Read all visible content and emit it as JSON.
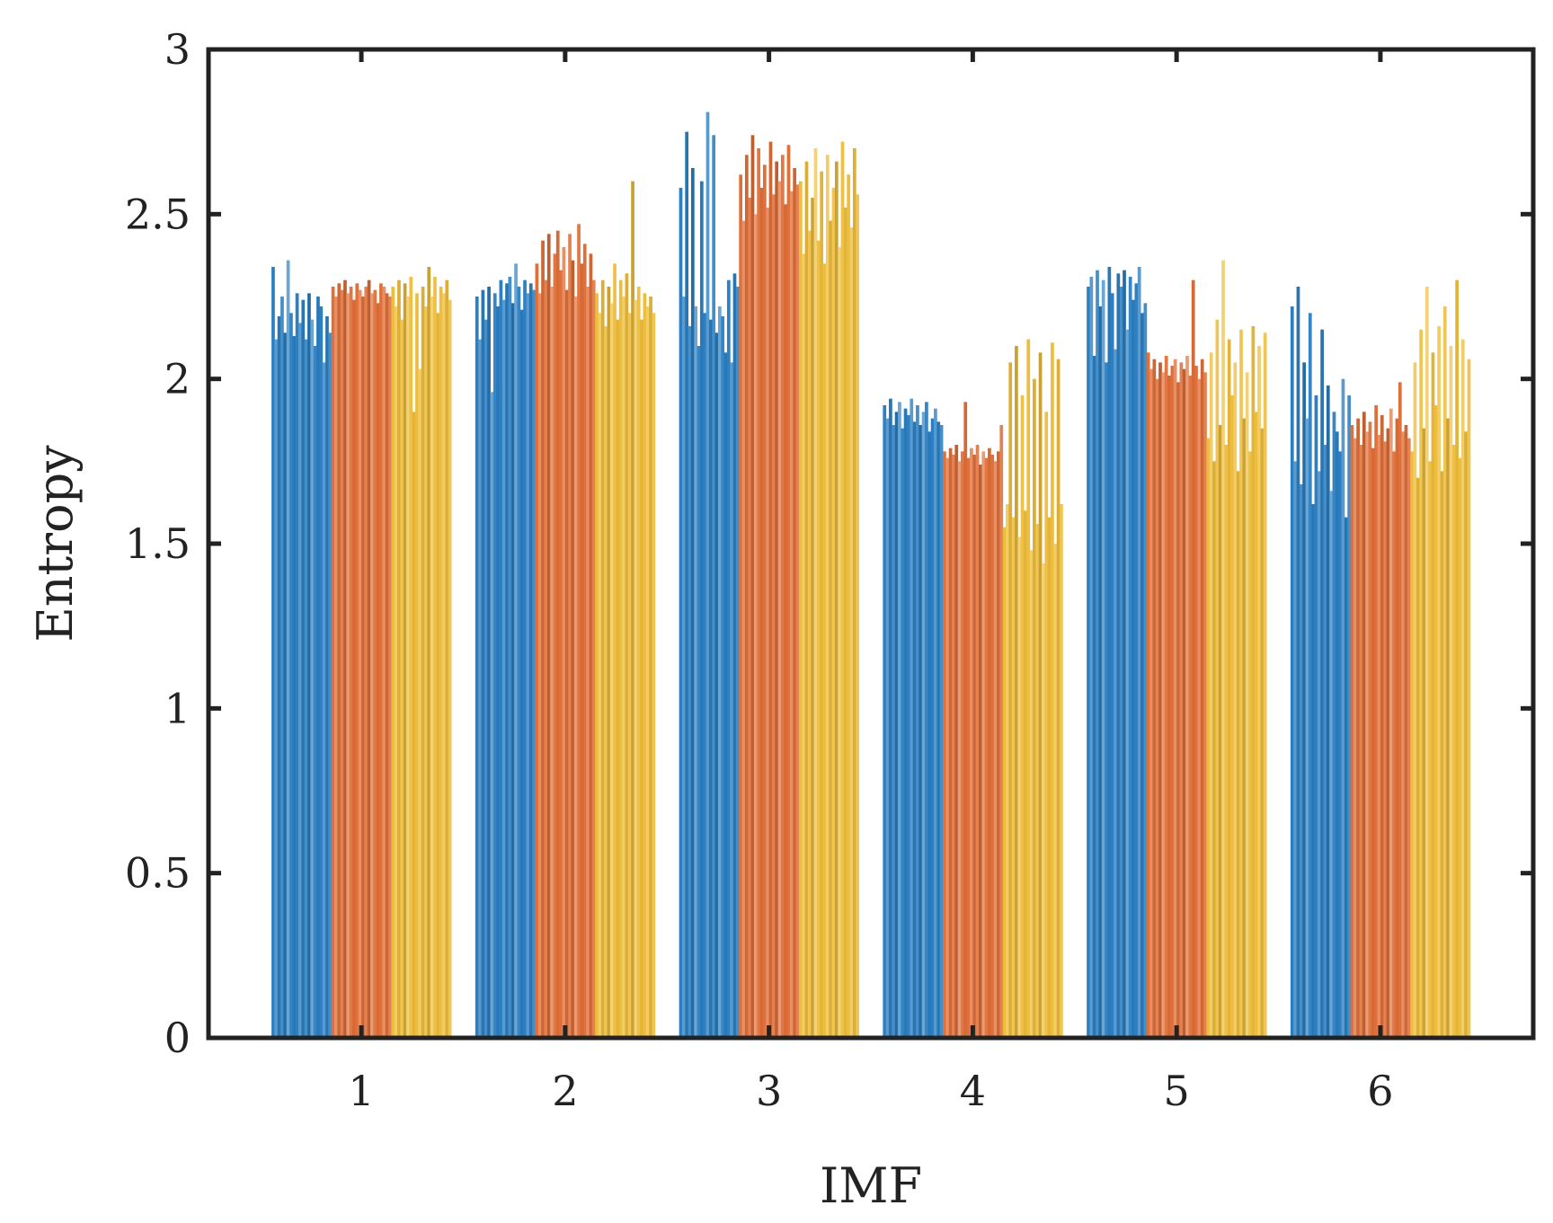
{
  "chart_data": {
    "type": "bar",
    "title": "",
    "xlabel": "IMF",
    "ylabel": "Entropy",
    "categories": [
      "1",
      "2",
      "3",
      "4",
      "5",
      "6"
    ],
    "ylim": [
      0,
      3
    ],
    "yticks": [
      0,
      0.5,
      1,
      1.5,
      2,
      2.5,
      3
    ],
    "ytick_labels": [
      "0",
      "0.5",
      "1",
      "1.5",
      "2",
      "2.5",
      "3"
    ],
    "grid": false,
    "legend": null,
    "bars_per_series_per_group": 20,
    "series": [
      {
        "name": "series 1",
        "color": "#2b7fc2",
        "groups": [
          [
            2.34,
            2.12,
            2.19,
            2.25,
            2.14,
            2.36,
            2.2,
            2.13,
            2.26,
            2.17,
            2.24,
            2.12,
            2.26,
            2.18,
            2.1,
            2.25,
            2.22,
            2.05,
            2.19,
            2.14
          ],
          [
            2.25,
            2.12,
            2.27,
            2.18,
            2.28,
            1.96,
            2.26,
            2.22,
            2.3,
            2.24,
            2.29,
            2.31,
            2.23,
            2.35,
            2.28,
            2.21,
            2.3,
            2.26,
            2.29,
            2.27
          ],
          [
            2.58,
            2.25,
            2.75,
            2.16,
            2.64,
            2.22,
            2.1,
            2.6,
            2.2,
            2.81,
            2.18,
            2.74,
            2.14,
            2.22,
            2.19,
            2.08,
            2.3,
            2.05,
            2.32,
            2.28
          ],
          [
            1.92,
            1.88,
            1.94,
            1.86,
            1.9,
            1.93,
            1.85,
            1.91,
            1.89,
            1.94,
            1.87,
            1.92,
            1.86,
            1.9,
            1.93,
            1.84,
            1.88,
            1.91,
            1.87,
            1.86
          ],
          [
            2.28,
            2.31,
            2.07,
            2.33,
            2.22,
            2.3,
            2.05,
            2.34,
            2.26,
            2.09,
            2.32,
            2.28,
            2.33,
            2.15,
            2.31,
            2.24,
            2.29,
            2.34,
            2.2,
            2.23
          ],
          [
            2.22,
            1.75,
            2.28,
            1.68,
            2.05,
            1.88,
            2.2,
            1.62,
            1.95,
            1.72,
            2.15,
            1.8,
            1.98,
            1.66,
            1.9,
            1.84,
            1.78,
            2.0,
            1.58,
            1.95
          ]
        ]
      },
      {
        "name": "series 2",
        "color": "#e0703a",
        "groups": [
          [
            2.28,
            2.25,
            2.29,
            2.27,
            2.3,
            2.26,
            2.28,
            2.24,
            2.29,
            2.27,
            2.25,
            2.28,
            2.3,
            2.26,
            2.27,
            2.23,
            2.29,
            2.28,
            2.26,
            2.25
          ],
          [
            2.35,
            2.26,
            2.42,
            2.3,
            2.44,
            2.28,
            2.38,
            2.45,
            2.33,
            2.4,
            2.27,
            2.44,
            2.36,
            2.25,
            2.47,
            2.35,
            2.41,
            2.28,
            2.38,
            2.3
          ],
          [
            2.62,
            2.48,
            2.68,
            2.55,
            2.74,
            2.5,
            2.7,
            2.58,
            2.65,
            2.52,
            2.72,
            2.56,
            2.66,
            2.6,
            2.68,
            2.53,
            2.71,
            2.57,
            2.64,
            2.59
          ],
          [
            1.78,
            1.76,
            1.79,
            1.77,
            1.8,
            1.75,
            1.78,
            1.93,
            1.76,
            1.79,
            1.77,
            1.8,
            1.74,
            1.78,
            1.76,
            1.79,
            1.77,
            1.75,
            1.78,
            1.86
          ],
          [
            2.08,
            2.03,
            2.06,
            2.0,
            2.05,
            2.02,
            2.07,
            2.01,
            2.04,
            2.06,
            1.99,
            2.05,
            2.03,
            2.07,
            2.01,
            2.3,
            2.04,
            2.0,
            2.06,
            2.02
          ],
          [
            1.86,
            1.82,
            1.88,
            1.8,
            1.9,
            1.84,
            1.87,
            1.79,
            1.92,
            1.83,
            1.89,
            1.81,
            1.85,
            1.91,
            1.78,
            1.88,
            1.99,
            1.84,
            1.86,
            1.82
          ]
        ]
      },
      {
        "name": "series 3",
        "color": "#eebd3c",
        "groups": [
          [
            2.28,
            2.22,
            2.3,
            2.18,
            2.29,
            2.25,
            2.31,
            1.9,
            2.26,
            2.03,
            2.28,
            2.22,
            2.34,
            2.25,
            2.31,
            2.2,
            2.28,
            2.26,
            2.3,
            2.24
          ],
          [
            2.26,
            2.2,
            2.3,
            2.16,
            2.28,
            2.23,
            2.35,
            2.18,
            2.3,
            2.25,
            2.32,
            2.2,
            2.6,
            2.24,
            2.28,
            2.18,
            2.26,
            2.22,
            2.25,
            2.2
          ],
          [
            2.6,
            2.38,
            2.66,
            2.45,
            2.55,
            2.7,
            2.42,
            2.63,
            2.35,
            2.68,
            2.48,
            2.58,
            2.66,
            2.4,
            2.72,
            2.52,
            2.62,
            2.46,
            2.7,
            2.56
          ],
          [
            1.55,
            1.62,
            2.05,
            1.58,
            2.1,
            1.52,
            1.95,
            1.6,
            2.12,
            1.48,
            2.0,
            1.56,
            2.08,
            1.44,
            1.9,
            1.58,
            2.11,
            1.5,
            2.06,
            1.62
          ],
          [
            1.82,
            2.08,
            1.75,
            2.18,
            1.86,
            2.36,
            1.8,
            2.12,
            1.95,
            2.05,
            1.72,
            2.15,
            1.88,
            2.02,
            1.78,
            2.16,
            1.9,
            2.1,
            1.85,
            2.14
          ],
          [
            1.78,
            2.05,
            1.7,
            2.15,
            1.85,
            2.28,
            1.75,
            2.08,
            1.92,
            2.16,
            1.72,
            2.22,
            1.88,
            2.1,
            1.8,
            2.3,
            1.76,
            2.12,
            1.84,
            2.06
          ]
        ]
      }
    ]
  }
}
